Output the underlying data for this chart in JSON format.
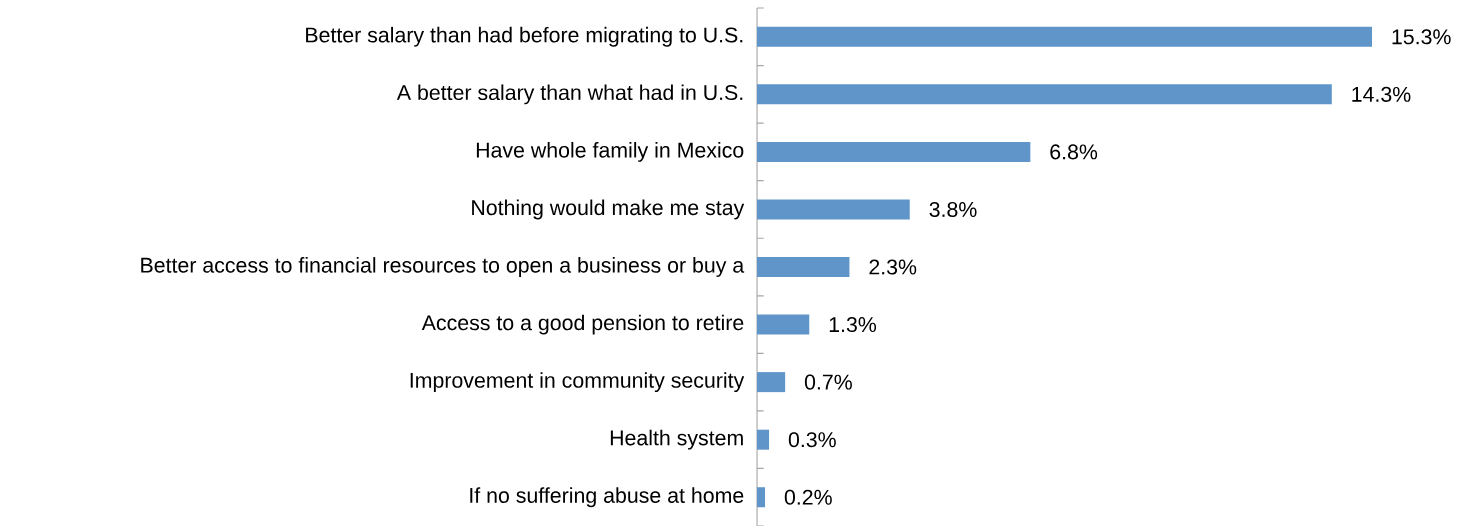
{
  "chart_data": {
    "type": "bar",
    "orientation": "horizontal",
    "categories": [
      "Better salary than had before migrating to U.S.",
      "A better salary than what had in U.S.",
      "Have whole family in Mexico",
      "Nothing would make me stay",
      "Better access to financial resources to open a business or buy a",
      "Access to a good pension to retire",
      "Improvement in community security",
      "Health system",
      "If no suffering abuse at home"
    ],
    "values": [
      15.3,
      14.3,
      6.8,
      3.8,
      2.3,
      1.3,
      0.7,
      0.3,
      0.2
    ],
    "value_labels": [
      "15.3%",
      "14.3%",
      "6.8%",
      "3.8%",
      "2.3%",
      "1.3%",
      "0.7%",
      "0.3%",
      "0.2%"
    ],
    "color": "#5f95c9"
  }
}
